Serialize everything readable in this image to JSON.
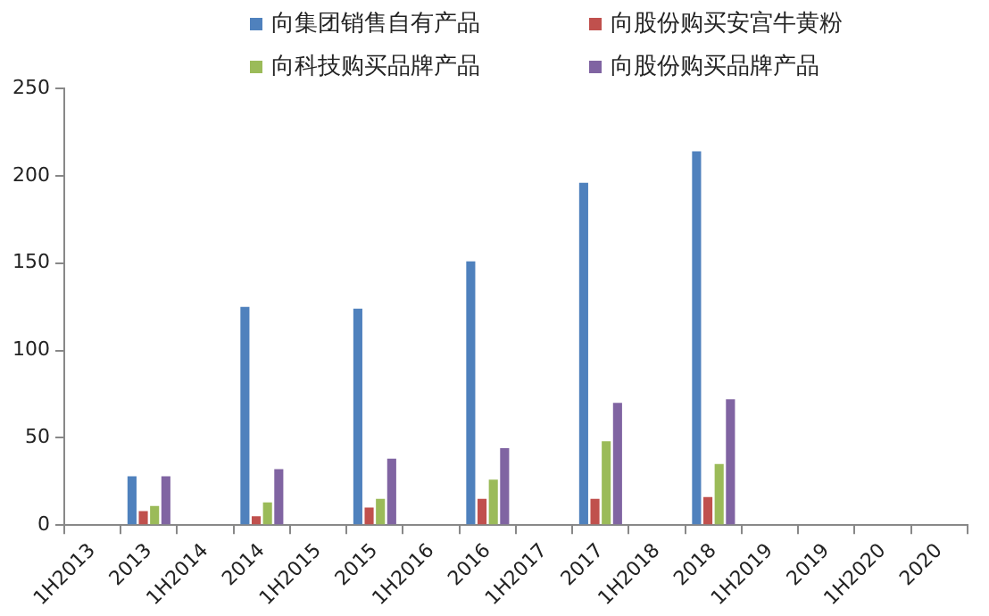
{
  "chart_data": {
    "type": "bar",
    "categories": [
      "1H2013",
      "2013",
      "1H2014",
      "2014",
      "1H2015",
      "2015",
      "1H2016",
      "2016",
      "1H2017",
      "2017",
      "1H2018",
      "2018",
      "1H2019",
      "2019",
      "1H2020",
      "2020"
    ],
    "series": [
      {
        "name": "向集团销售自有产品",
        "color": "#4f81bd",
        "values": [
          null,
          28,
          null,
          125,
          null,
          124,
          null,
          151,
          null,
          196,
          null,
          214,
          null,
          null,
          null,
          null
        ]
      },
      {
        "name": "向股份购买安宫牛黄粉",
        "color": "#c0504d",
        "values": [
          null,
          8,
          null,
          5,
          null,
          10,
          null,
          15,
          null,
          15,
          null,
          16,
          null,
          null,
          null,
          null
        ]
      },
      {
        "name": "向科技购买品牌产品",
        "color": "#9bbb59",
        "values": [
          null,
          11,
          null,
          13,
          null,
          15,
          null,
          26,
          null,
          48,
          null,
          35,
          null,
          null,
          null,
          null
        ]
      },
      {
        "name": "向股份购买品牌产品",
        "color": "#8064a2",
        "values": [
          null,
          28,
          null,
          32,
          null,
          38,
          null,
          44,
          null,
          70,
          null,
          72,
          null,
          null,
          null,
          null
        ]
      }
    ],
    "ylim": [
      0,
      250
    ],
    "yticks": [
      0,
      50,
      100,
      150,
      200,
      250
    ],
    "grid": false,
    "legend": "top"
  }
}
